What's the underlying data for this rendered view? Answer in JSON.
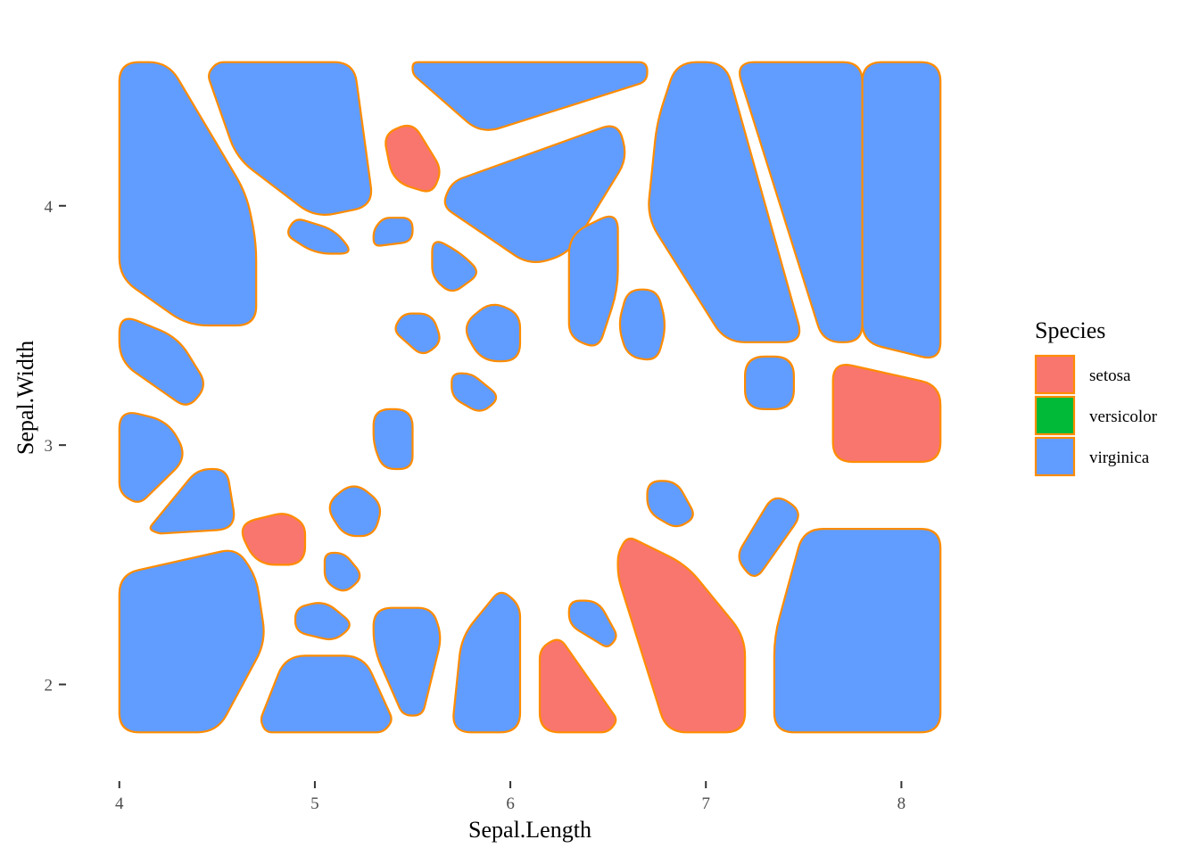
{
  "chart_data": {
    "type": "voronoi-tile",
    "title": "",
    "xlabel": "Sepal.Length",
    "ylabel": "Sepal.Width",
    "xlim": [
      3.96,
      8.24
    ],
    "ylim": [
      1.76,
      4.64
    ],
    "x_ticks": [
      4,
      5,
      6,
      7,
      8
    ],
    "y_ticks": [
      2,
      3,
      4
    ],
    "grid": false,
    "legend": {
      "title": "Species",
      "position": "right",
      "entries": [
        {
          "label": "setosa",
          "color": "#F8766D"
        },
        {
          "label": "versicolor",
          "color": "#00BA38"
        },
        {
          "label": "virginica",
          "color": "#619CFF"
        }
      ]
    },
    "tile_stroke_color": "#FF8C00",
    "cells": [
      {
        "species": "virginica",
        "polygon": [
          [
            4.0,
            4.6
          ],
          [
            4.25,
            4.6
          ],
          [
            4.65,
            4.05
          ],
          [
            4.7,
            3.85
          ],
          [
            4.7,
            3.5
          ],
          [
            4.35,
            3.5
          ],
          [
            4.0,
            3.7
          ]
        ]
      },
      {
        "species": "virginica",
        "polygon": [
          [
            4.45,
            4.55
          ],
          [
            4.5,
            4.6
          ],
          [
            5.2,
            4.6
          ],
          [
            5.3,
            4.0
          ],
          [
            5.0,
            3.95
          ],
          [
            4.6,
            4.2
          ]
        ]
      },
      {
        "species": "virginica",
        "polygon": [
          [
            5.5,
            4.6
          ],
          [
            6.7,
            4.6
          ],
          [
            6.7,
            4.52
          ],
          [
            5.85,
            4.3
          ],
          [
            5.5,
            4.55
          ]
        ]
      },
      {
        "species": "virginica",
        "polygon": [
          [
            6.85,
            4.6
          ],
          [
            7.1,
            4.6
          ],
          [
            7.5,
            3.43
          ],
          [
            7.1,
            3.43
          ],
          [
            6.7,
            3.95
          ],
          [
            6.75,
            4.35
          ]
        ]
      },
      {
        "species": "virginica",
        "polygon": [
          [
            7.15,
            4.6
          ],
          [
            7.8,
            4.6
          ],
          [
            7.8,
            3.43
          ],
          [
            7.6,
            3.43
          ]
        ]
      },
      {
        "species": "virginica",
        "polygon": [
          [
            7.8,
            4.6
          ],
          [
            8.2,
            4.6
          ],
          [
            8.2,
            3.35
          ],
          [
            7.8,
            3.43
          ]
        ]
      },
      {
        "species": "setosa",
        "polygon": [
          [
            5.35,
            4.3
          ],
          [
            5.5,
            4.35
          ],
          [
            5.65,
            4.15
          ],
          [
            5.6,
            4.05
          ],
          [
            5.4,
            4.1
          ]
        ]
      },
      {
        "species": "virginica",
        "polygon": [
          [
            5.7,
            4.1
          ],
          [
            6.55,
            4.35
          ],
          [
            6.6,
            4.2
          ],
          [
            6.3,
            3.8
          ],
          [
            6.1,
            3.75
          ],
          [
            5.65,
            4.0
          ]
        ]
      },
      {
        "species": "virginica",
        "polygon": [
          [
            4.9,
            3.95
          ],
          [
            5.1,
            3.9
          ],
          [
            5.2,
            3.8
          ],
          [
            5.0,
            3.8
          ],
          [
            4.85,
            3.88
          ]
        ]
      },
      {
        "species": "virginica",
        "polygon": [
          [
            5.35,
            3.95
          ],
          [
            5.5,
            3.95
          ],
          [
            5.5,
            3.85
          ],
          [
            5.3,
            3.83
          ],
          [
            5.3,
            3.9
          ]
        ]
      },
      {
        "species": "virginica",
        "polygon": [
          [
            5.6,
            3.87
          ],
          [
            5.75,
            3.8
          ],
          [
            5.85,
            3.72
          ],
          [
            5.7,
            3.63
          ],
          [
            5.6,
            3.7
          ]
        ]
      },
      {
        "species": "virginica",
        "polygon": [
          [
            6.3,
            3.88
          ],
          [
            6.55,
            3.98
          ],
          [
            6.55,
            3.65
          ],
          [
            6.45,
            3.4
          ],
          [
            6.3,
            3.45
          ]
        ]
      },
      {
        "species": "virginica",
        "polygon": [
          [
            6.6,
            3.65
          ],
          [
            6.75,
            3.65
          ],
          [
            6.8,
            3.5
          ],
          [
            6.75,
            3.35
          ],
          [
            6.6,
            3.37
          ],
          [
            6.55,
            3.5
          ]
        ]
      },
      {
        "species": "virginica",
        "polygon": [
          [
            5.45,
            3.55
          ],
          [
            5.6,
            3.55
          ],
          [
            5.65,
            3.43
          ],
          [
            5.55,
            3.37
          ],
          [
            5.4,
            3.48
          ]
        ]
      },
      {
        "species": "virginica",
        "polygon": [
          [
            5.75,
            3.5
          ],
          [
            5.9,
            3.6
          ],
          [
            6.05,
            3.55
          ],
          [
            6.05,
            3.35
          ],
          [
            5.85,
            3.35
          ]
        ]
      },
      {
        "species": "virginica",
        "polygon": [
          [
            4.0,
            3.55
          ],
          [
            4.3,
            3.45
          ],
          [
            4.45,
            3.25
          ],
          [
            4.35,
            3.15
          ],
          [
            4.0,
            3.35
          ]
        ]
      },
      {
        "species": "virginica",
        "polygon": [
          [
            7.2,
            3.37
          ],
          [
            7.45,
            3.37
          ],
          [
            7.45,
            3.15
          ],
          [
            7.2,
            3.15
          ]
        ]
      },
      {
        "species": "setosa",
        "polygon": [
          [
            7.65,
            3.35
          ],
          [
            8.2,
            3.25
          ],
          [
            8.2,
            2.93
          ],
          [
            7.65,
            2.93
          ]
        ]
      },
      {
        "species": "virginica",
        "polygon": [
          [
            5.7,
            3.3
          ],
          [
            5.8,
            3.3
          ],
          [
            5.95,
            3.2
          ],
          [
            5.85,
            3.13
          ],
          [
            5.7,
            3.2
          ]
        ]
      },
      {
        "species": "virginica",
        "polygon": [
          [
            4.0,
            3.15
          ],
          [
            4.25,
            3.1
          ],
          [
            4.35,
            2.95
          ],
          [
            4.1,
            2.75
          ],
          [
            4.0,
            2.8
          ]
        ]
      },
      {
        "species": "virginica",
        "polygon": [
          [
            5.3,
            3.15
          ],
          [
            5.5,
            3.15
          ],
          [
            5.5,
            2.9
          ],
          [
            5.35,
            2.9
          ],
          [
            5.3,
            3.0
          ]
        ]
      },
      {
        "species": "virginica",
        "polygon": [
          [
            4.15,
            2.65
          ],
          [
            4.4,
            2.9
          ],
          [
            4.55,
            2.9
          ],
          [
            4.6,
            2.65
          ],
          [
            4.2,
            2.63
          ]
        ]
      },
      {
        "species": "virginica",
        "polygon": [
          [
            5.05,
            2.75
          ],
          [
            5.2,
            2.85
          ],
          [
            5.35,
            2.75
          ],
          [
            5.3,
            2.62
          ],
          [
            5.15,
            2.62
          ]
        ]
      },
      {
        "species": "virginica",
        "polygon": [
          [
            6.7,
            2.85
          ],
          [
            6.85,
            2.85
          ],
          [
            6.95,
            2.7
          ],
          [
            6.85,
            2.65
          ],
          [
            6.7,
            2.72
          ]
        ]
      },
      {
        "species": "virginica",
        "polygon": [
          [
            7.15,
            2.53
          ],
          [
            7.35,
            2.8
          ],
          [
            7.5,
            2.72
          ],
          [
            7.25,
            2.43
          ]
        ]
      },
      {
        "species": "setosa",
        "polygon": [
          [
            4.6,
            2.67
          ],
          [
            4.85,
            2.72
          ],
          [
            4.95,
            2.67
          ],
          [
            4.95,
            2.5
          ],
          [
            4.7,
            2.5
          ]
        ]
      },
      {
        "species": "setosa",
        "polygon": [
          [
            6.55,
            2.55
          ],
          [
            6.6,
            2.62
          ],
          [
            6.9,
            2.5
          ],
          [
            7.2,
            2.2
          ],
          [
            7.2,
            1.8
          ],
          [
            6.8,
            1.8
          ],
          [
            6.55,
            2.45
          ]
        ]
      },
      {
        "species": "virginica",
        "polygon": [
          [
            7.35,
            2.2
          ],
          [
            7.5,
            2.65
          ],
          [
            8.2,
            2.65
          ],
          [
            8.2,
            1.8
          ],
          [
            7.35,
            1.8
          ]
        ]
      },
      {
        "species": "virginica",
        "polygon": [
          [
            4.0,
            2.46
          ],
          [
            4.6,
            2.57
          ],
          [
            4.7,
            2.45
          ],
          [
            4.75,
            2.18
          ],
          [
            4.5,
            1.8
          ],
          [
            4.0,
            1.8
          ]
        ]
      },
      {
        "species": "virginica",
        "polygon": [
          [
            5.05,
            2.55
          ],
          [
            5.15,
            2.55
          ],
          [
            5.25,
            2.45
          ],
          [
            5.15,
            2.38
          ],
          [
            5.05,
            2.43
          ]
        ]
      },
      {
        "species": "virginica",
        "polygon": [
          [
            4.9,
            2.32
          ],
          [
            5.05,
            2.35
          ],
          [
            5.2,
            2.25
          ],
          [
            5.1,
            2.18
          ],
          [
            4.9,
            2.22
          ]
        ]
      },
      {
        "species": "virginica",
        "polygon": [
          [
            5.3,
            2.32
          ],
          [
            5.6,
            2.32
          ],
          [
            5.65,
            2.2
          ],
          [
            5.55,
            1.87
          ],
          [
            5.45,
            1.87
          ],
          [
            5.3,
            2.15
          ]
        ]
      },
      {
        "species": "virginica",
        "polygon": [
          [
            5.75,
            2.2
          ],
          [
            5.95,
            2.4
          ],
          [
            6.05,
            2.33
          ],
          [
            6.05,
            1.8
          ],
          [
            5.7,
            1.8
          ]
        ]
      },
      {
        "species": "virginica",
        "polygon": [
          [
            6.3,
            2.35
          ],
          [
            6.45,
            2.35
          ],
          [
            6.55,
            2.2
          ],
          [
            6.5,
            2.15
          ],
          [
            6.3,
            2.25
          ]
        ]
      },
      {
        "species": "setosa",
        "polygon": [
          [
            6.15,
            2.15
          ],
          [
            6.25,
            2.2
          ],
          [
            6.55,
            1.85
          ],
          [
            6.5,
            1.8
          ],
          [
            6.15,
            1.8
          ]
        ]
      },
      {
        "species": "virginica",
        "polygon": [
          [
            4.72,
            1.85
          ],
          [
            4.85,
            2.12
          ],
          [
            5.25,
            2.12
          ],
          [
            5.4,
            1.85
          ],
          [
            5.35,
            1.8
          ],
          [
            4.75,
            1.8
          ]
        ]
      }
    ]
  }
}
